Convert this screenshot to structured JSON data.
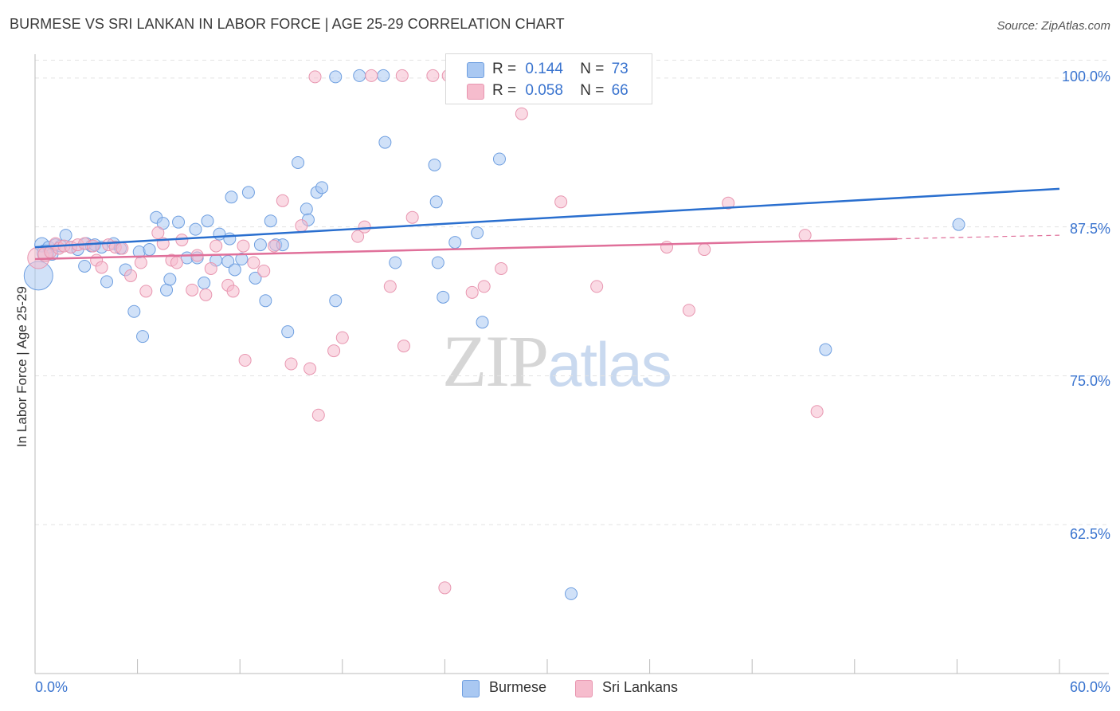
{
  "title": "BURMESE VS SRI LANKAN IN LABOR FORCE | AGE 25-29 CORRELATION CHART",
  "source": "Source: ZipAtlas.com",
  "watermark": {
    "zip": "ZIP",
    "atlas": "atlas"
  },
  "legend_top": {
    "burmese": {
      "r_label": "R =",
      "r_value": "0.144",
      "n_label": "N =",
      "n_value": "73"
    },
    "srilankan": {
      "r_label": "R =",
      "r_value": "0.058",
      "n_label": "N =",
      "n_value": "66"
    }
  },
  "legend_bottom": {
    "burmese": "Burmese",
    "srilankan": "Sri Lankans"
  },
  "colors": {
    "burmese_fill": "#a9c8f2",
    "burmese_stroke": "#6f9fe0",
    "burmese_line": "#2a6fcf",
    "srilankan_fill": "#f6bccd",
    "srilankan_stroke": "#e896b0",
    "srilankan_line": "#e0709a",
    "tick_text": "#3a74cf",
    "grid": "#e3e3e3"
  },
  "chart_data": {
    "type": "scatter",
    "title": "BURMESE VS SRI LANKAN IN LABOR FORCE | AGE 25-29 CORRELATION CHART",
    "xlabel": "",
    "ylabel": "In Labor Force | Age 25-29",
    "xlim": [
      0,
      60
    ],
    "ylim": [
      50,
      102
    ],
    "x_tick_labels": [
      "0.0%",
      "60.0%"
    ],
    "y_ticks": [
      62.5,
      75.0,
      87.5,
      100.0
    ],
    "y_tick_labels": [
      "62.5%",
      "75.0%",
      "87.5%",
      "100.0%"
    ],
    "grid": true,
    "legend_position": "top-center",
    "series": [
      {
        "name": "Burmese",
        "r": 0.144,
        "n": 73,
        "trend": {
          "x": [
            0,
            60
          ],
          "y": [
            85.8,
            90.7
          ]
        },
        "points": [
          [
            0.2,
            83.4,
            24
          ],
          [
            0.4,
            86.0,
            12
          ],
          [
            0.6,
            85.3,
            14
          ],
          [
            0.8,
            85.8,
            10
          ],
          [
            1.0,
            85.2,
            10
          ],
          [
            1.2,
            86.0,
            10
          ],
          [
            1.5,
            85.9,
            10
          ],
          [
            1.8,
            86.8,
            10
          ],
          [
            2.1,
            85.8,
            10
          ],
          [
            2.5,
            85.6,
            10
          ],
          [
            2.9,
            84.2,
            10
          ],
          [
            3.0,
            86.1,
            10
          ],
          [
            3.3,
            85.9,
            10
          ],
          [
            3.5,
            86.0,
            10
          ],
          [
            3.9,
            85.8,
            10
          ],
          [
            4.2,
            82.9,
            10
          ],
          [
            4.6,
            86.1,
            10
          ],
          [
            5.0,
            85.7,
            10
          ],
          [
            5.3,
            83.9,
            10
          ],
          [
            5.8,
            80.4,
            10
          ],
          [
            6.1,
            85.4,
            10
          ],
          [
            6.3,
            78.3,
            10
          ],
          [
            6.7,
            85.6,
            10
          ],
          [
            7.1,
            88.3,
            10
          ],
          [
            7.5,
            87.8,
            10
          ],
          [
            7.7,
            82.2,
            10
          ],
          [
            7.9,
            83.1,
            10
          ],
          [
            8.4,
            87.9,
            10
          ],
          [
            8.9,
            84.9,
            10
          ],
          [
            9.4,
            87.3,
            10
          ],
          [
            9.5,
            84.9,
            10
          ],
          [
            9.9,
            82.8,
            10
          ],
          [
            10.1,
            88.0,
            10
          ],
          [
            10.6,
            84.7,
            10
          ],
          [
            10.8,
            86.9,
            10
          ],
          [
            11.4,
            86.5,
            10
          ],
          [
            11.3,
            84.6,
            10
          ],
          [
            11.5,
            90.0,
            10
          ],
          [
            11.7,
            83.9,
            10
          ],
          [
            12.1,
            84.8,
            10
          ],
          [
            12.5,
            90.4,
            10
          ],
          [
            12.9,
            83.2,
            10
          ],
          [
            13.2,
            86.0,
            10
          ],
          [
            13.5,
            81.3,
            10
          ],
          [
            13.8,
            88.0,
            10
          ],
          [
            14.1,
            86.0,
            10
          ],
          [
            14.5,
            86.0,
            10
          ],
          [
            14.8,
            78.7,
            10
          ],
          [
            15.4,
            92.9,
            10
          ],
          [
            15.9,
            89.0,
            10
          ],
          [
            16.0,
            88.1,
            10
          ],
          [
            16.5,
            90.4,
            10
          ],
          [
            16.8,
            90.8,
            10
          ],
          [
            17.6,
            81.3,
            10
          ],
          [
            17.6,
            100.1,
            10
          ],
          [
            19.0,
            100.2,
            10
          ],
          [
            20.4,
            100.2,
            10
          ],
          [
            20.5,
            94.6,
            10
          ],
          [
            21.1,
            84.5,
            10
          ],
          [
            23.4,
            92.7,
            10
          ],
          [
            23.5,
            89.6,
            10
          ],
          [
            23.6,
            84.5,
            10
          ],
          [
            23.9,
            81.6,
            10
          ],
          [
            24.6,
            86.2,
            10
          ],
          [
            25.9,
            87.0,
            10
          ],
          [
            26.2,
            79.5,
            10
          ],
          [
            27.2,
            93.2,
            10
          ],
          [
            29.8,
            100.2,
            10
          ],
          [
            31.4,
            56.7,
            10
          ],
          [
            46.3,
            77.2,
            10
          ],
          [
            54.1,
            87.7,
            10
          ]
        ]
      },
      {
        "name": "Sri Lankans",
        "r": 0.058,
        "n": 66,
        "trend": {
          "x": [
            0,
            50.5
          ],
          "y": [
            84.8,
            86.5
          ]
        },
        "trend_dashed": {
          "x": [
            50.5,
            60
          ],
          "y": [
            86.5,
            86.8
          ]
        },
        "points": [
          [
            0.2,
            84.9,
            18
          ],
          [
            0.6,
            85.2,
            12
          ],
          [
            0.9,
            85.4,
            10
          ],
          [
            1.2,
            86.1,
            10
          ],
          [
            1.4,
            85.7,
            10
          ],
          [
            1.7,
            85.9,
            10
          ],
          [
            2.1,
            85.8,
            10
          ],
          [
            2.5,
            86.0,
            10
          ],
          [
            2.9,
            86.1,
            10
          ],
          [
            3.4,
            85.9,
            10
          ],
          [
            3.6,
            84.7,
            10
          ],
          [
            3.9,
            84.1,
            10
          ],
          [
            4.3,
            86.0,
            10
          ],
          [
            4.7,
            85.8,
            10
          ],
          [
            5.1,
            85.7,
            10
          ],
          [
            5.6,
            83.4,
            10
          ],
          [
            6.2,
            84.5,
            10
          ],
          [
            6.5,
            82.1,
            10
          ],
          [
            7.2,
            87.0,
            10
          ],
          [
            7.5,
            86.1,
            10
          ],
          [
            8.0,
            84.7,
            10
          ],
          [
            8.3,
            84.5,
            10
          ],
          [
            8.6,
            86.4,
            10
          ],
          [
            9.2,
            82.2,
            10
          ],
          [
            9.5,
            85.1,
            10
          ],
          [
            10.0,
            81.8,
            10
          ],
          [
            10.3,
            84.0,
            10
          ],
          [
            10.6,
            85.9,
            10
          ],
          [
            11.3,
            82.6,
            10
          ],
          [
            11.6,
            82.1,
            10
          ],
          [
            12.2,
            85.9,
            10
          ],
          [
            12.3,
            76.3,
            10
          ],
          [
            12.8,
            84.5,
            10
          ],
          [
            13.4,
            83.8,
            10
          ],
          [
            14.0,
            85.9,
            10
          ],
          [
            14.5,
            89.7,
            10
          ],
          [
            15.0,
            76.0,
            10
          ],
          [
            15.6,
            87.6,
            10
          ],
          [
            16.1,
            75.6,
            10
          ],
          [
            16.6,
            71.7,
            10
          ],
          [
            16.4,
            100.1,
            10
          ],
          [
            17.5,
            77.1,
            10
          ],
          [
            18.0,
            78.2,
            10
          ],
          [
            18.9,
            86.7,
            10
          ],
          [
            19.3,
            87.5,
            10
          ],
          [
            19.7,
            100.2,
            10
          ],
          [
            20.8,
            82.5,
            10
          ],
          [
            21.5,
            100.2,
            10
          ],
          [
            21.6,
            77.5,
            10
          ],
          [
            22.1,
            88.3,
            10
          ],
          [
            23.3,
            100.2,
            10
          ],
          [
            24.0,
            57.2,
            10
          ],
          [
            24.2,
            100.2,
            10
          ],
          [
            25.6,
            82.0,
            10
          ],
          [
            26.3,
            82.5,
            10
          ],
          [
            27.3,
            84.0,
            10
          ],
          [
            28.5,
            97.0,
            10
          ],
          [
            30.8,
            89.6,
            10
          ],
          [
            32.9,
            82.5,
            10
          ],
          [
            33.5,
            100.2,
            10
          ],
          [
            37.0,
            85.8,
            10
          ],
          [
            38.3,
            80.5,
            10
          ],
          [
            39.2,
            85.6,
            10
          ],
          [
            40.6,
            89.5,
            10
          ],
          [
            45.1,
            86.8,
            10
          ],
          [
            45.8,
            72.0,
            10
          ]
        ]
      }
    ]
  }
}
